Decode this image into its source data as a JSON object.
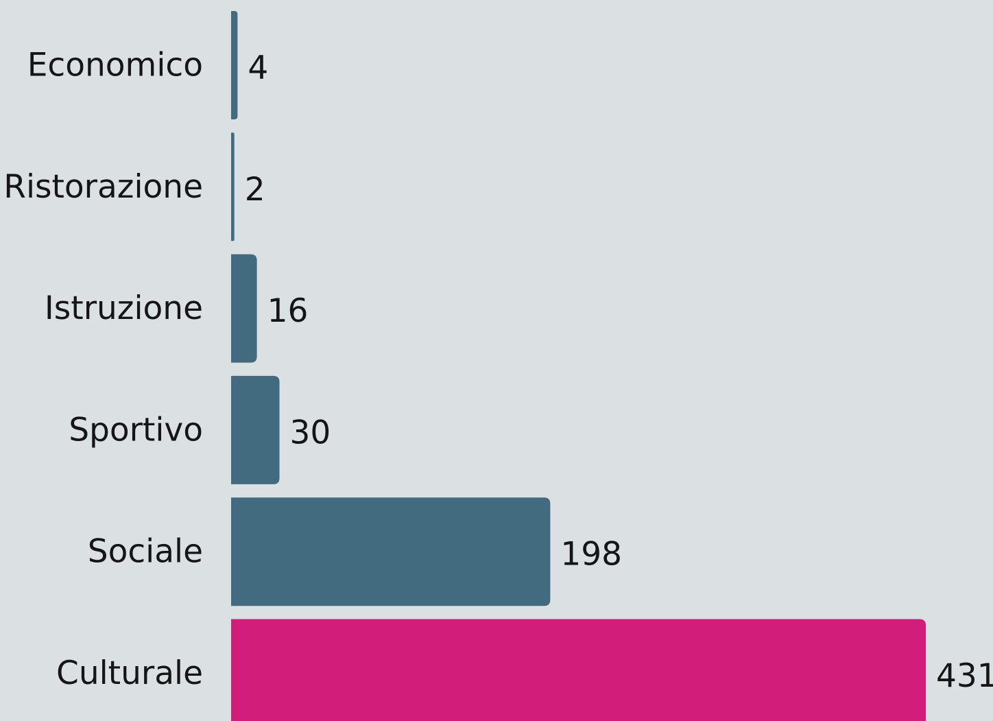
{
  "chart_data": {
    "type": "bar",
    "orientation": "horizontal",
    "categories": [
      "Economico",
      "Ristorazione",
      "Istruzione",
      "Sportivo",
      "Sociale",
      "Culturale"
    ],
    "values": [
      4,
      2,
      16,
      30,
      198,
      431
    ],
    "value_labels": [
      "4",
      "2",
      "16",
      "30",
      "198",
      "431"
    ],
    "title": "",
    "xlabel": "",
    "ylabel": "",
    "xlim": [
      0,
      431
    ],
    "grid": false,
    "legend": "none",
    "colors": {
      "background": "#dbe0e3",
      "bar": "#436b80",
      "highlight_bar": "#d21d7a",
      "text": "#151515"
    },
    "highlight_category": "Culturale"
  }
}
